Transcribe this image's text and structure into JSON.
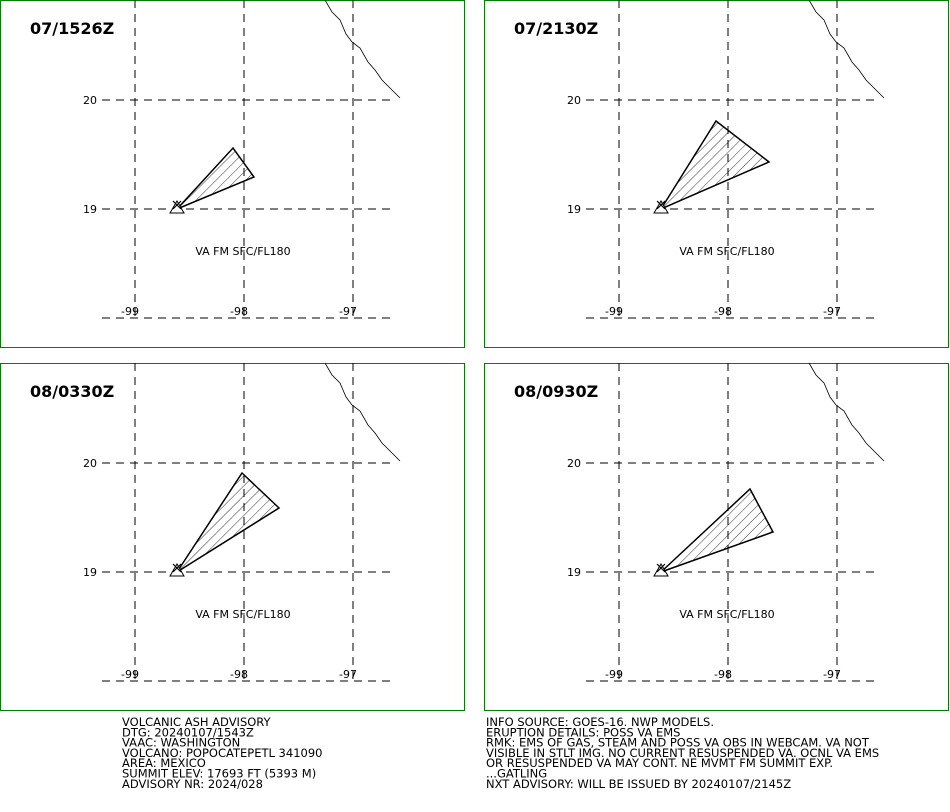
{
  "panels": [
    {
      "time": "07/1526Z",
      "label": "VA FM SFC/FL180"
    },
    {
      "time": "07/2130Z",
      "label": "VA FM SFC/FL180"
    },
    {
      "time": "08/0330Z",
      "label": "VA FM SFC/FL180"
    },
    {
      "time": "08/0930Z",
      "label": "VA FM SFC/FL180"
    }
  ],
  "lat_labels": [
    "20",
    "19"
  ],
  "lon_labels": [
    "-99",
    "-98",
    "-97"
  ],
  "footer": {
    "left": [
      "VOLCANIC ASH ADVISORY",
      "DTG: 20240107/1543Z",
      "VAAC: WASHINGTON",
      "VOLCANO: POPOCATEPETL 341090",
      "AREA: MEXICO",
      "SUMMIT ELEV: 17693 FT (5393 M)",
      "ADVISORY NR: 2024/028"
    ],
    "right": [
      "INFO SOURCE: GOES-16. NWP MODELS.",
      "ERUPTION DETAILS: POSS VA EMS",
      "RMK: EMS OF GAS, STEAM AND POSS VA OBS IN WEBCAM. VA NOT",
      "VISIBLE IN STLT IMG. NO CURRENT RESUSPENDED VA. OCNL VA EMS",
      "OR RESUSPENDED VA MAY CONT. NE MVMT FM SUMMIT EXP.",
      "...GATLING",
      "NXT ADVISORY: WILL BE ISSUED BY 20240107/2145Z"
    ]
  }
}
